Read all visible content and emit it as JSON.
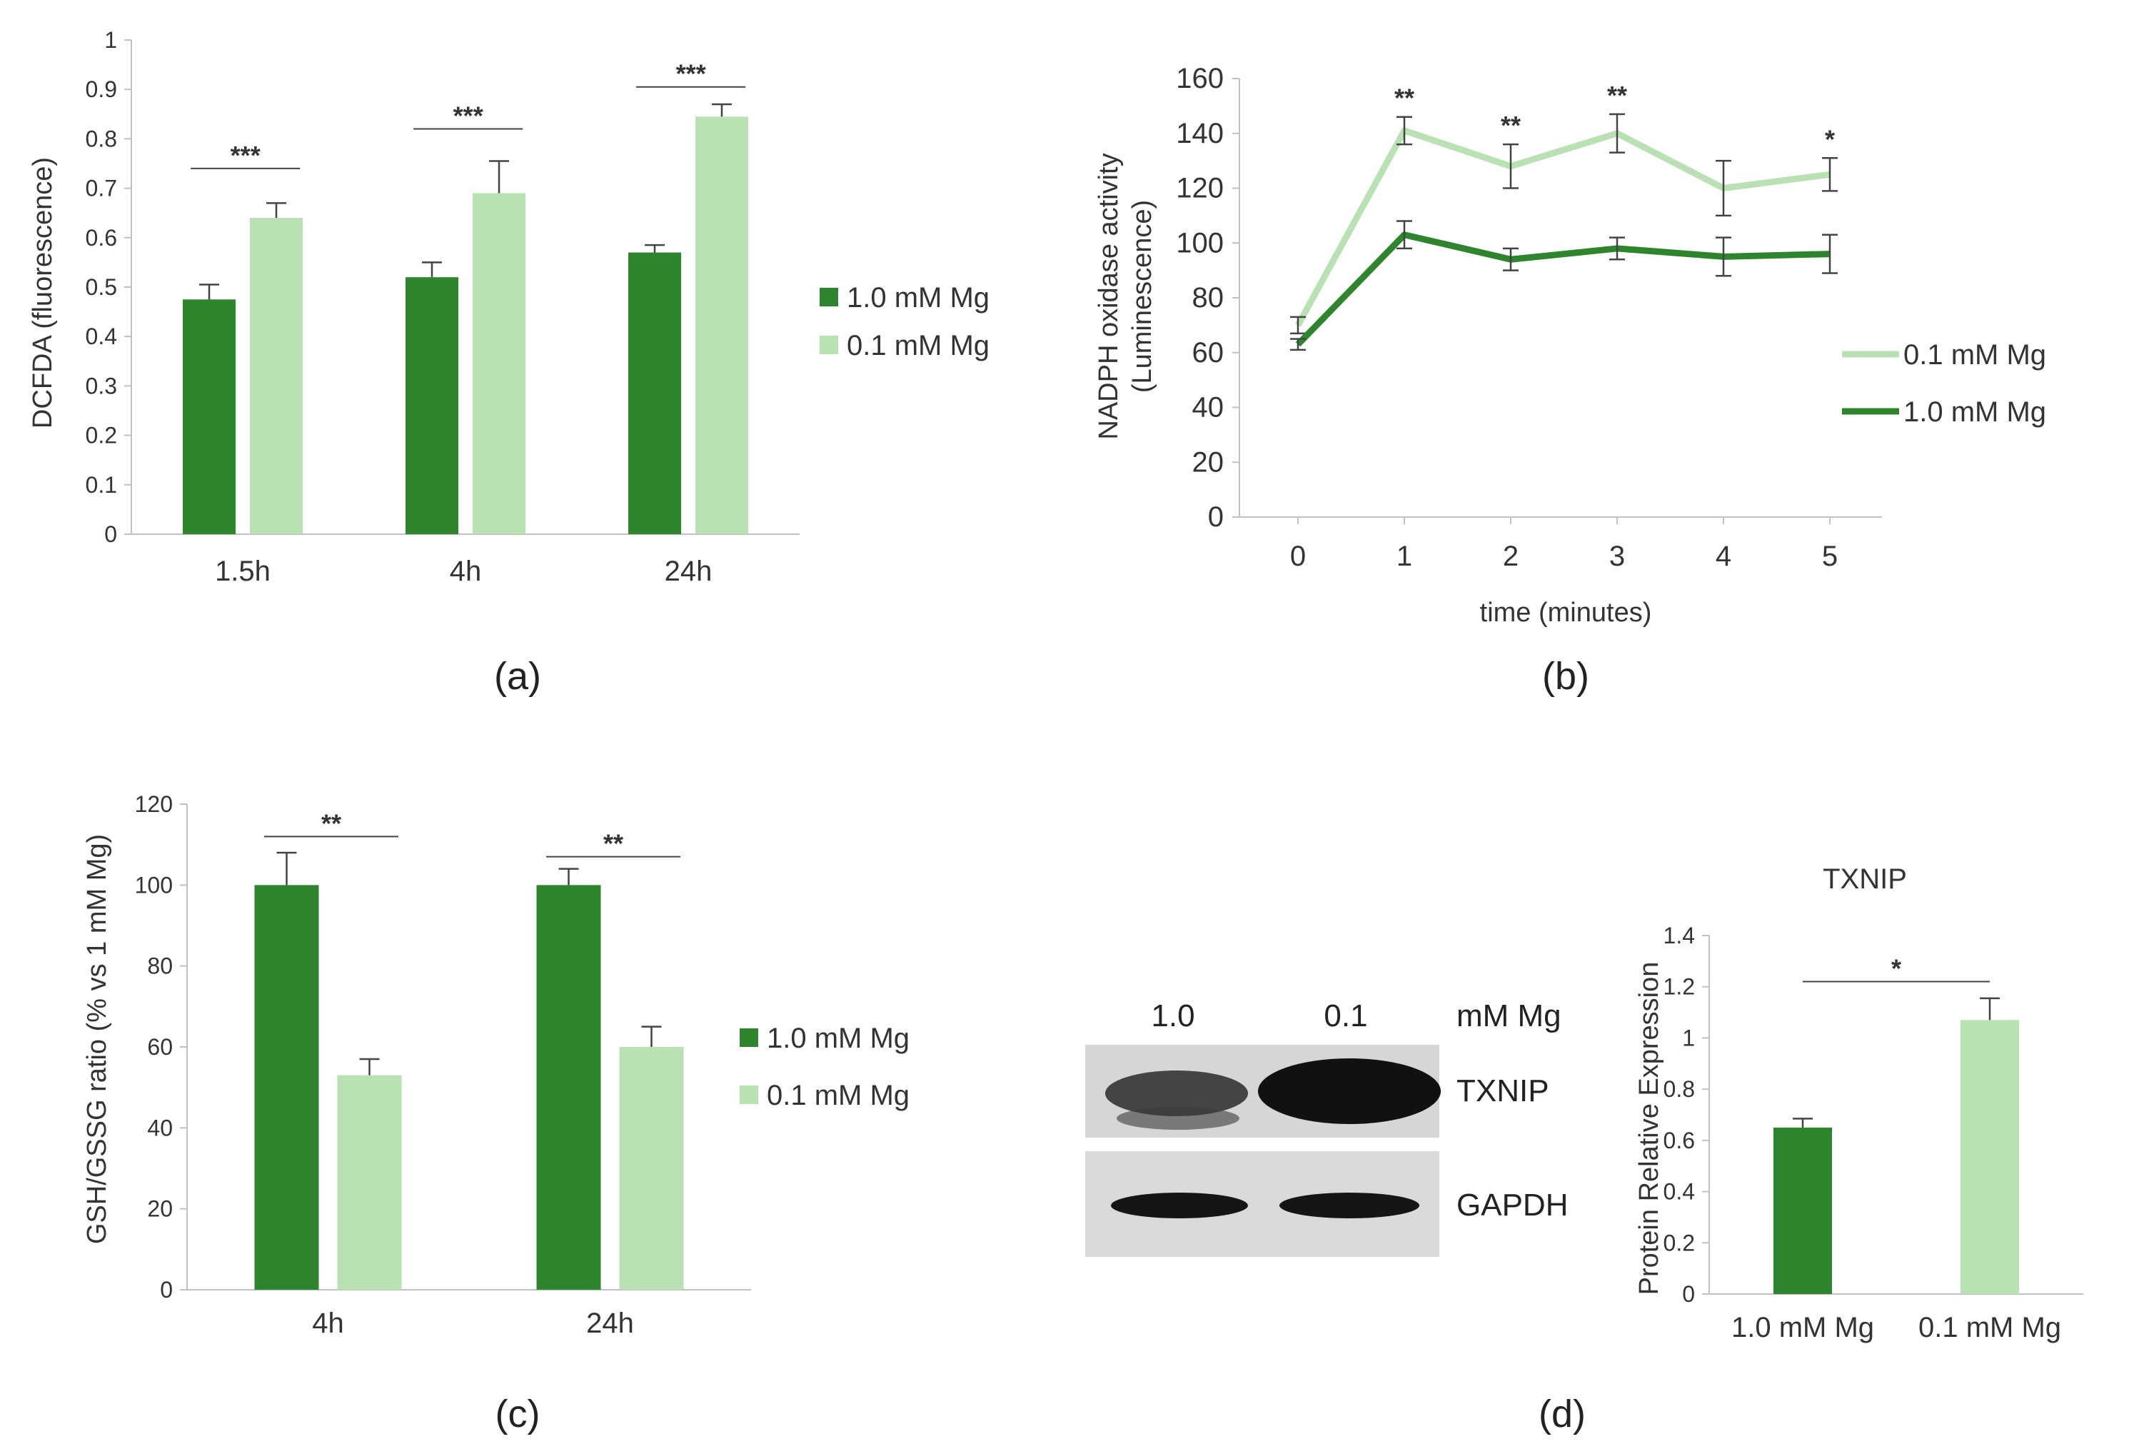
{
  "colors": {
    "dark": "#2e852e",
    "light": "#b9e1b3",
    "axis": "#c0c0c0",
    "err": "#444444",
    "blotBg": "#d9d9d9",
    "band": "#151515"
  },
  "legend": {
    "dark_label": "1.0 mM Mg",
    "light_label": "0.1 mM Mg"
  },
  "blot": {
    "lane_labels": [
      "1.0",
      "0.1"
    ],
    "unit_label": "mM Mg",
    "row_labels": [
      "TXNIP",
      "GAPDH"
    ]
  },
  "chart_data": [
    {
      "id": "a",
      "panel_label": "(a)",
      "type": "bar",
      "title": "",
      "xlabel": "",
      "ylabel": "DCFDA (fluorescence)",
      "ylim": [
        0,
        1
      ],
      "yticks": [
        "0",
        "0.1",
        "0.2",
        "0.3",
        "0.4",
        "0.5",
        "0.6",
        "0.7",
        "0.8",
        "0.9",
        "1"
      ],
      "categories": [
        "1.5h",
        "4h",
        "24h"
      ],
      "series": [
        {
          "name": "1.0 mM Mg",
          "values": [
            0.475,
            0.52,
            0.57
          ],
          "errors": [
            0.03,
            0.03,
            0.015
          ]
        },
        {
          "name": "0.1 mM Mg",
          "values": [
            0.64,
            0.69,
            0.845
          ],
          "errors": [
            0.03,
            0.065,
            0.025
          ]
        }
      ],
      "significance": [
        "***",
        "***",
        "***"
      ],
      "sig_levels": [
        0.74,
        0.82,
        0.905
      ],
      "legend": [
        "1.0 mM Mg",
        "0.1 mM Mg"
      ]
    },
    {
      "id": "b",
      "panel_label": "(b)",
      "type": "line",
      "xlabel": "time (minutes)",
      "ylabel": "NADPH oxidase activity (Luminescence)",
      "ylabel_lines": [
        "NADPH oxidase activity",
        "(Luminescence)"
      ],
      "ylim": [
        0,
        160
      ],
      "yticks": [
        "0",
        "20",
        "40",
        "60",
        "80",
        "100",
        "120",
        "140",
        "160"
      ],
      "x": [
        0,
        1,
        2,
        3,
        4,
        5
      ],
      "xticks": [
        "0",
        "1",
        "2",
        "3",
        "4",
        "5"
      ],
      "series": [
        {
          "name": "0.1 mM Mg",
          "values": [
            70,
            141,
            128,
            140,
            120,
            125
          ],
          "errors": [
            3,
            5,
            8,
            7,
            10,
            6
          ]
        },
        {
          "name": "1.0 mM Mg",
          "values": [
            63,
            103,
            94,
            98,
            95,
            96
          ],
          "errors": [
            2,
            5,
            4,
            4,
            7,
            7
          ]
        }
      ],
      "significance": [
        "",
        "**",
        "**",
        "**",
        "",
        "*"
      ],
      "legend": [
        "0.1 mM Mg",
        "1.0 mM Mg"
      ]
    },
    {
      "id": "c",
      "panel_label": "(c)",
      "type": "bar",
      "xlabel": "",
      "ylabel": "GSH/GSSG ratio (% vs 1 mM Mg)",
      "ylim": [
        0,
        120
      ],
      "yticks": [
        "0",
        "20",
        "40",
        "60",
        "80",
        "100",
        "120"
      ],
      "categories": [
        "4h",
        "24h"
      ],
      "series": [
        {
          "name": "1.0 mM Mg",
          "values": [
            100,
            100
          ],
          "errors": [
            8,
            4
          ]
        },
        {
          "name": "0.1 mM Mg",
          "values": [
            53,
            60
          ],
          "errors": [
            4,
            5
          ]
        }
      ],
      "significance": [
        "**",
        "**"
      ],
      "sig_levels": [
        112,
        107
      ],
      "legend": [
        "1.0 mM Mg",
        "0.1 mM Mg"
      ]
    },
    {
      "id": "d",
      "panel_label": "(d)",
      "type": "bar",
      "title": "TXNIP",
      "xlabel": "",
      "ylabel": "Protein Relative Expression",
      "ylim": [
        0,
        1.4
      ],
      "yticks": [
        "0",
        "0.2",
        "0.4",
        "0.6",
        "0.8",
        "1",
        "1.2",
        "1.4"
      ],
      "categories": [
        "1.0 mM Mg",
        "0.1 mM Mg"
      ],
      "values": [
        0.65,
        1.07
      ],
      "errors": [
        0.035,
        0.085
      ],
      "significance": "*",
      "sig_level": 1.22
    }
  ]
}
